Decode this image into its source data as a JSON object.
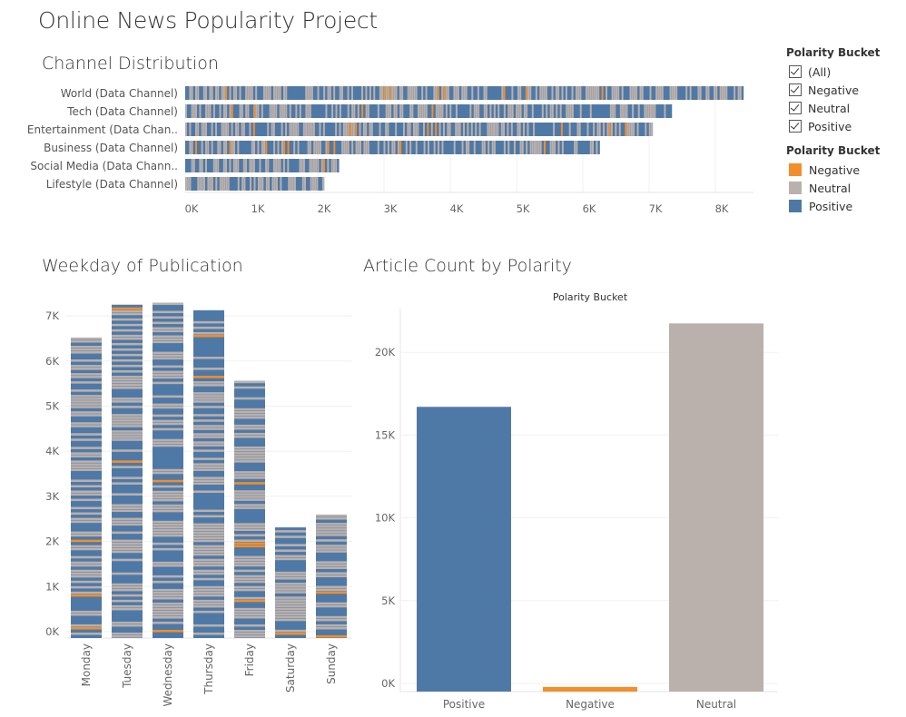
{
  "dashboard": {
    "title": "Online News Popularity Project"
  },
  "colors": {
    "positive": "#4e79a7",
    "neutral": "#bab0ac",
    "negative": "#f28e2b"
  },
  "filter_legend": {
    "title": "Polarity Bucket",
    "items": [
      {
        "label": "(All)",
        "checked": true
      },
      {
        "label": "Negative",
        "checked": true
      },
      {
        "label": "Neutral",
        "checked": true
      },
      {
        "label": "Positive",
        "checked": true
      }
    ]
  },
  "color_legend": {
    "title": "Polarity Bucket",
    "items": [
      {
        "label": "Negative",
        "color": "#f28e2b"
      },
      {
        "label": "Neutral",
        "color": "#bab0ac"
      },
      {
        "label": "Positive",
        "color": "#4e79a7"
      }
    ]
  },
  "chart_data": [
    {
      "id": "channel",
      "type": "bar",
      "orientation": "horizontal",
      "title": "Channel Distribution",
      "categories": [
        "World (Data Channel)",
        "Tech (Data Channel)",
        "Entertainment (Data Chan..",
        "Business (Data Channel)",
        "Social Media (Data Chann..",
        "Lifestyle (Data Channel)"
      ],
      "values": [
        8427,
        7346,
        7057,
        6258,
        2323,
        2099
      ],
      "x_ticks": [
        "0K",
        "1K",
        "2K",
        "3K",
        "4K",
        "5K",
        "6K",
        "7K",
        "8K"
      ],
      "xlim": [
        0,
        8800
      ]
    },
    {
      "id": "weekday",
      "type": "bar",
      "orientation": "vertical",
      "title": "Weekday of Publication",
      "categories": [
        "Monday",
        "Tuesday",
        "Wednesday",
        "Thursday",
        "Friday",
        "Saturday",
        "Sunday"
      ],
      "values": [
        6661,
        7390,
        7435,
        7267,
        5701,
        2453,
        2737
      ],
      "y_ticks": [
        "0K",
        "1K",
        "2K",
        "3K",
        "4K",
        "5K",
        "6K",
        "7K"
      ],
      "ylim": [
        0,
        7600
      ]
    },
    {
      "id": "polarity",
      "type": "bar",
      "orientation": "vertical",
      "title": "Article Count by Polarity",
      "column_header": "Polarity Bucket",
      "categories": [
        "Positive",
        "Negative",
        "Neutral"
      ],
      "values": [
        17200,
        280,
        22240
      ],
      "y_ticks": [
        "0K",
        "5K",
        "10K",
        "15K",
        "20K"
      ],
      "ylim": [
        0,
        22700
      ]
    }
  ]
}
